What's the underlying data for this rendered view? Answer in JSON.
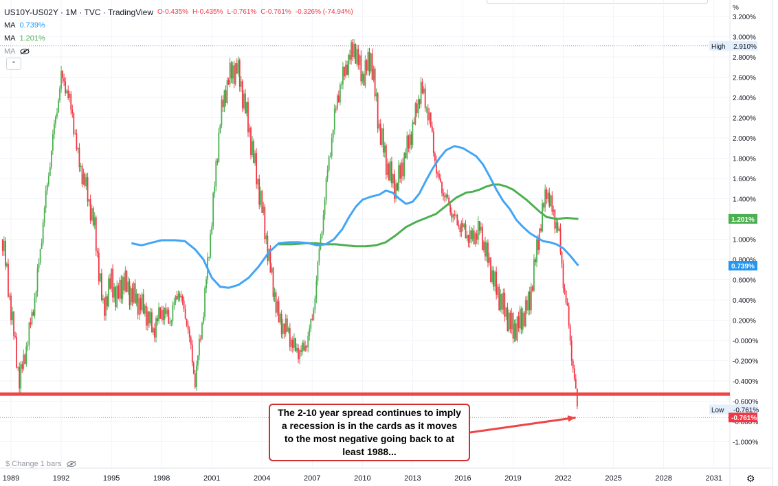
{
  "header": {
    "symbol": "US10Y-US02Y · 1M · TVC · TradingView",
    "open": "O-0.435%",
    "high": "H-0.435%",
    "low": "L-0.761%",
    "close": "C-0.761%",
    "change": "-0.326% (-74.94%)",
    "ma1_label": "MA",
    "ma1_value": "0.739%",
    "ma2_label": "MA",
    "ma2_value": "1.201%",
    "ma3_label": "MA"
  },
  "collapse_glyph": "⌃",
  "percent_label": "%",
  "bottom": {
    "change_label": "$ Change 1 bars"
  },
  "colors": {
    "up": "#26a69a",
    "candle_up": "#4caf50",
    "candle_down": "#f23645",
    "ma_fast": "#42a5f5",
    "ma_slow": "#4caf50",
    "annotation": "#f04545"
  },
  "annotation": "The 2-10 year spread continues to imply a recession is in the cards as it moves to the most negative going back to at least 1988...",
  "chart_data": {
    "type": "line",
    "title": "US10Y-US02Y",
    "ylabel": "%",
    "ylim": [
      -1.0,
      3.2
    ],
    "xlim": [
      1988.5,
      2032.3
    ],
    "y_ticks": [
      "3.200%",
      "3.000%",
      "2.800%",
      "2.600%",
      "2.400%",
      "2.200%",
      "2.000%",
      "1.800%",
      "1.600%",
      "1.400%",
      "1.200%",
      "1.000%",
      "0.800%",
      "0.600%",
      "0.400%",
      "0.200%",
      "-0.000%",
      "-0.200%",
      "-0.400%",
      "-0.600%",
      "-0.800%",
      "-1.000%"
    ],
    "y_tick_values": [
      3.2,
      3.0,
      2.8,
      2.6,
      2.4,
      2.2,
      2.0,
      1.8,
      1.6,
      1.4,
      1.2,
      1.0,
      0.8,
      0.6,
      0.4,
      0.2,
      0.0,
      -0.2,
      -0.4,
      -0.6,
      -0.8,
      -1.0
    ],
    "x_ticks": [
      "1989",
      "1992",
      "1995",
      "1998",
      "2001",
      "2004",
      "2007",
      "2010",
      "2013",
      "2016",
      "2019",
      "2022",
      "2025",
      "2028",
      "2031"
    ],
    "x_tick_values": [
      1989,
      1992,
      1995,
      1998,
      2001,
      2004,
      2007,
      2010,
      2013,
      2016,
      2019,
      2022,
      2025,
      2028,
      2031
    ],
    "spread": {
      "x": [
        1988.5,
        1989.0,
        1989.5,
        1990.0,
        1990.5,
        1991.0,
        1991.5,
        1992.0,
        1992.3,
        1992.7,
        1993.0,
        1993.5,
        1994.0,
        1994.5,
        1995.0,
        1995.3,
        1995.7,
        1996.0,
        1996.5,
        1997.0,
        1997.5,
        1998.0,
        1998.5,
        1999.0,
        1999.5,
        2000.0,
        2000.5,
        2001.0,
        2001.5,
        2002.0,
        2002.5,
        2003.0,
        2003.5,
        2004.0,
        2004.5,
        2005.0,
        2005.5,
        2006.0,
        2006.5,
        2007.0,
        2007.5,
        2008.0,
        2008.5,
        2009.0,
        2009.5,
        2010.0,
        2010.5,
        2011.0,
        2011.5,
        2012.0,
        2012.5,
        2013.0,
        2013.5,
        2014.0,
        2014.5,
        2015.0,
        2015.5,
        2016.0,
        2016.5,
        2017.0,
        2017.5,
        2018.0,
        2018.5,
        2019.0,
        2019.5,
        2020.0,
        2020.5,
        2021.0,
        2021.3,
        2021.7,
        2022.0,
        2022.3,
        2022.6,
        2022.9
      ],
      "y": [
        1.0,
        0.3,
        -0.4,
        0.0,
        0.5,
        1.3,
        2.0,
        2.6,
        2.5,
        2.2,
        1.8,
        1.5,
        1.1,
        0.3,
        0.6,
        0.4,
        0.6,
        0.5,
        0.4,
        0.3,
        0.1,
        0.3,
        0.2,
        0.5,
        0.2,
        -0.4,
        0.3,
        1.2,
        2.2,
        2.6,
        2.7,
        2.3,
        1.8,
        1.3,
        0.7,
        0.2,
        0.1,
        -0.1,
        -0.1,
        0.2,
        1.0,
        1.8,
        2.4,
        2.7,
        2.9,
        2.6,
        2.8,
        2.1,
        1.7,
        1.5,
        1.8,
        2.1,
        2.5,
        2.2,
        1.6,
        1.4,
        1.2,
        1.1,
        1.0,
        1.1,
        0.8,
        0.5,
        0.3,
        0.1,
        0.2,
        0.4,
        1.0,
        1.5,
        1.3,
        1.1,
        0.6,
        0.2,
        -0.3,
        -0.761
      ]
    },
    "ma_fast": {
      "name": "MA",
      "x": [
        1996.2,
        1996.8,
        1997.5,
        1998.0,
        1998.8,
        1999.4,
        2000.0,
        2000.5,
        2001.0,
        2001.5,
        2002.0,
        2002.6,
        2003.2,
        2003.8,
        2004.4,
        2005.0,
        2005.6,
        2006.2,
        2006.8,
        2007.3,
        2007.8,
        2008.3,
        2008.8,
        2009.2,
        2009.6,
        2010.0,
        2010.5,
        2011.0,
        2011.4,
        2011.8,
        2012.2,
        2012.6,
        2013.0,
        2013.4,
        2013.8,
        2014.2,
        2014.6,
        2015.0,
        2015.5,
        2016.0,
        2016.4,
        2016.8,
        2017.2,
        2017.6,
        2018.0,
        2018.4,
        2018.8,
        2019.2,
        2019.6,
        2020.0,
        2020.4,
        2020.8,
        2021.2,
        2021.6,
        2022.0,
        2022.4,
        2022.9
      ],
      "y": [
        0.96,
        0.94,
        0.97,
        0.99,
        0.99,
        0.98,
        0.9,
        0.8,
        0.62,
        0.53,
        0.52,
        0.55,
        0.62,
        0.73,
        0.87,
        0.96,
        0.97,
        0.97,
        0.96,
        0.94,
        0.95,
        1.0,
        1.1,
        1.22,
        1.32,
        1.39,
        1.42,
        1.44,
        1.48,
        1.46,
        1.4,
        1.35,
        1.37,
        1.45,
        1.58,
        1.7,
        1.8,
        1.88,
        1.92,
        1.9,
        1.86,
        1.82,
        1.74,
        1.62,
        1.49,
        1.38,
        1.3,
        1.19,
        1.12,
        1.06,
        1.02,
        0.98,
        0.97,
        0.95,
        0.91,
        0.84,
        0.739
      ]
    },
    "ma_slow": {
      "name": "MA",
      "x": [
        2005.0,
        2005.8,
        2006.6,
        2007.2,
        2007.8,
        2008.4,
        2009.0,
        2009.6,
        2010.2,
        2010.8,
        2011.4,
        2012.0,
        2012.6,
        2013.2,
        2013.8,
        2014.4,
        2015.0,
        2015.6,
        2016.2,
        2016.6,
        2017.0,
        2017.4,
        2017.8,
        2018.2,
        2018.6,
        2019.0,
        2019.4,
        2019.8,
        2020.2,
        2020.6,
        2021.0,
        2021.6,
        2022.2,
        2022.9
      ],
      "y": [
        0.95,
        0.95,
        0.96,
        0.96,
        0.95,
        0.95,
        0.94,
        0.93,
        0.93,
        0.94,
        0.97,
        1.04,
        1.12,
        1.17,
        1.21,
        1.25,
        1.33,
        1.41,
        1.46,
        1.47,
        1.49,
        1.52,
        1.54,
        1.54,
        1.52,
        1.49,
        1.44,
        1.39,
        1.33,
        1.27,
        1.22,
        1.2,
        1.21,
        1.201
      ]
    },
    "support_level": -0.53,
    "prior_low_line": -0.761,
    "price_labels": [
      {
        "text": "High",
        "value": "2.910%",
        "y": 2.91,
        "style": "light"
      },
      {
        "text": "",
        "value": "1.201%",
        "y": 1.201,
        "style": "green"
      },
      {
        "text": "",
        "value": "0.739%",
        "y": 0.739,
        "style": "blue"
      },
      {
        "text": "Low",
        "value": "-0.761%",
        "y": -0.681,
        "style": "light"
      },
      {
        "text": "",
        "value": "-0.761%",
        "y": -0.761,
        "style": "red"
      }
    ]
  }
}
